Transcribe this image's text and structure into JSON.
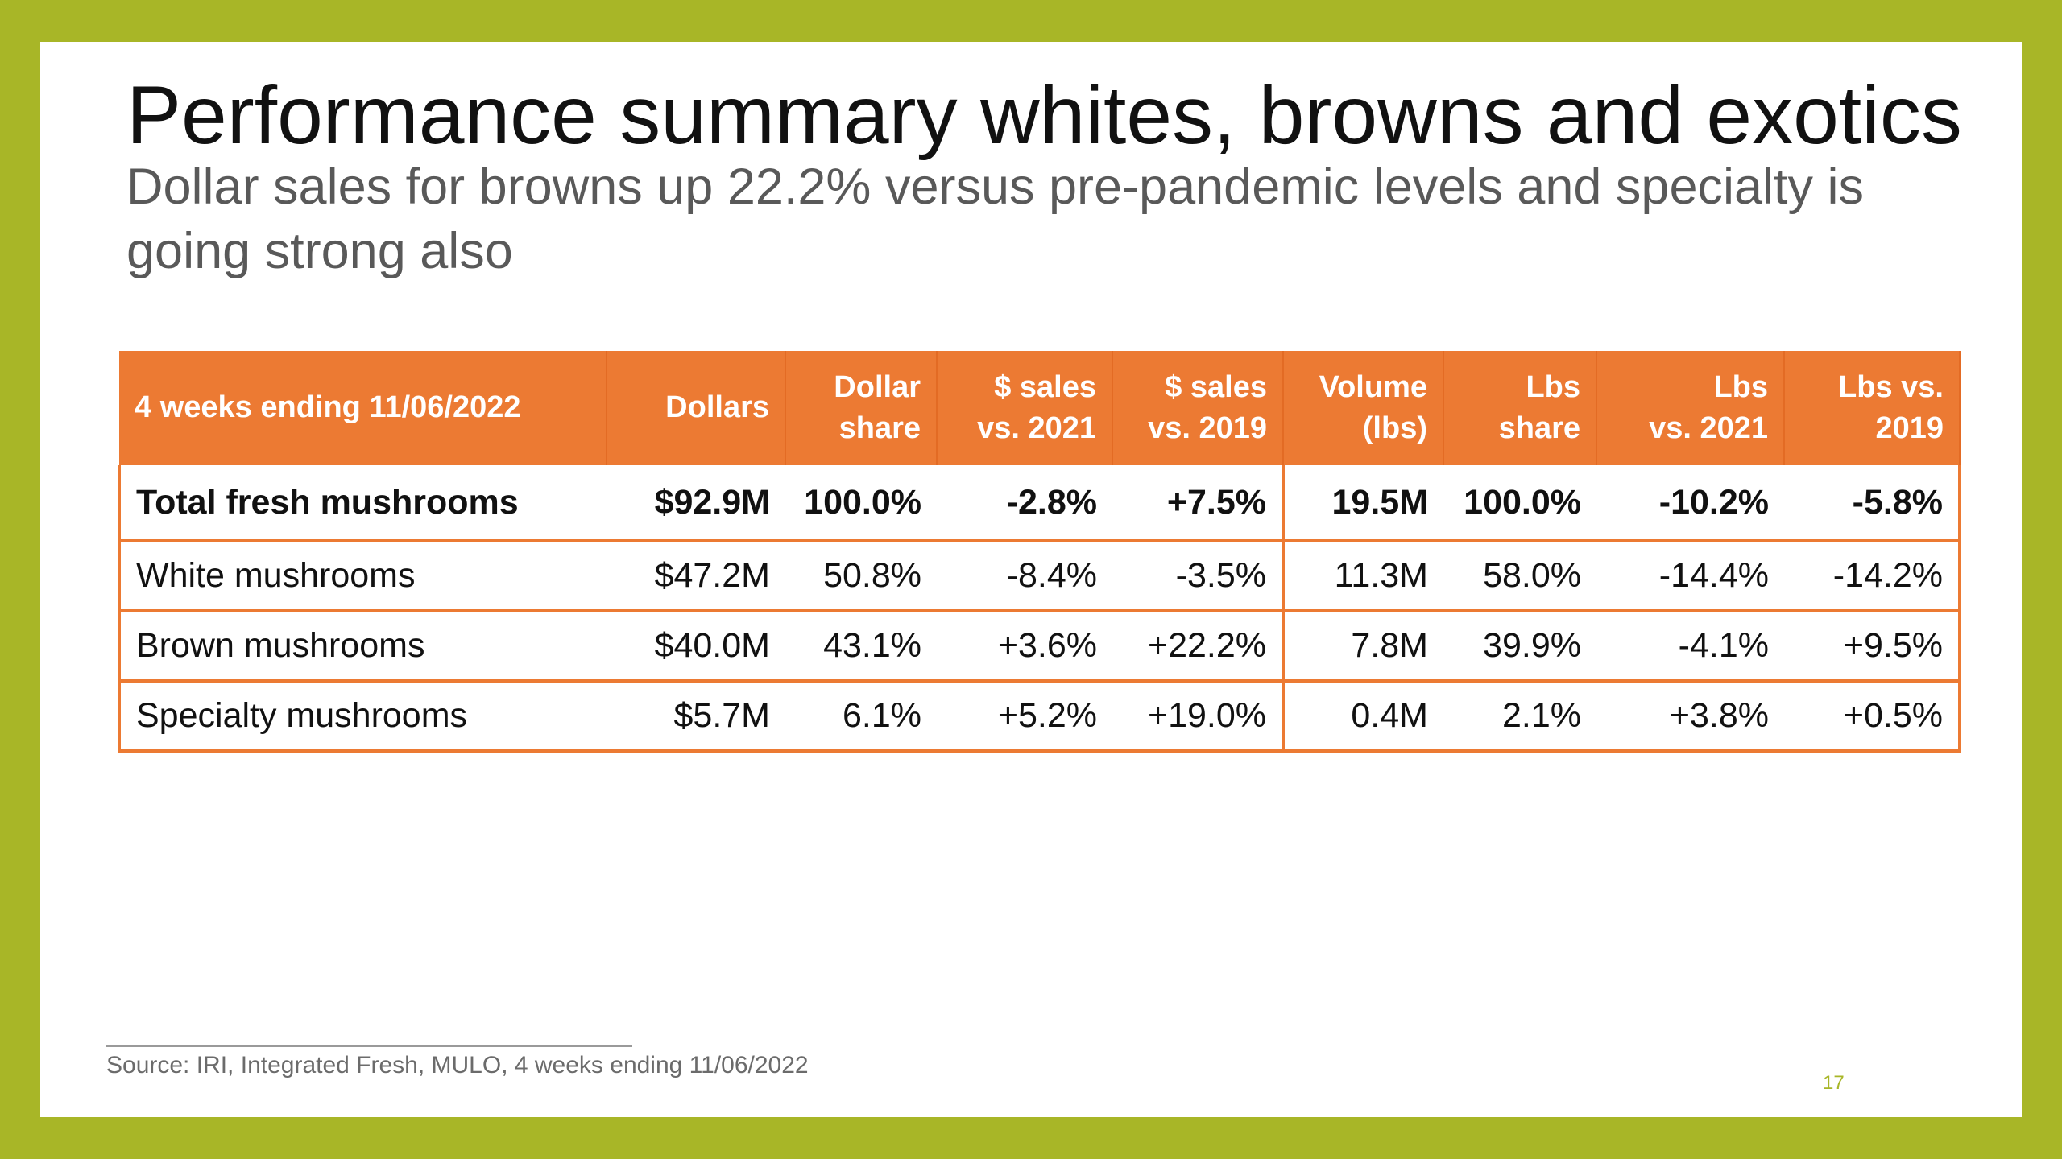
{
  "slide": {
    "title": "Performance summary whites, browns and exotics",
    "subtitle": "Dollar sales for browns up 22.2% versus pre-pandemic levels and specialty is going strong also",
    "source": "Source: IRI, Integrated Fresh, MULO, 4 weeks ending 11/06/2022",
    "page_number": "17",
    "colors": {
      "frame": "#a8b627",
      "header_fill": "#ec7a33",
      "border": "#ec7a33"
    }
  },
  "table": {
    "headers": [
      "4 weeks ending 11/06/2022",
      "Dollars",
      "Dollar\nshare",
      "$ sales\nvs. 2021",
      "$ sales\nvs. 2019",
      "Volume\n(lbs)",
      "Lbs\nshare",
      "Lbs\nvs. 2021",
      "Lbs vs.\n2019"
    ],
    "rows": [
      [
        "Total fresh mushrooms",
        "$92.9M",
        "100.0%",
        "-2.8%",
        "+7.5%",
        "19.5M",
        "100.0%",
        "-10.2%",
        "-5.8%"
      ],
      [
        "White mushrooms",
        "$47.2M",
        "50.8%",
        "-8.4%",
        "-3.5%",
        "11.3M",
        "58.0%",
        "-14.4%",
        "-14.2%"
      ],
      [
        "Brown mushrooms",
        "$40.0M",
        "43.1%",
        "+3.6%",
        "+22.2%",
        "7.8M",
        "39.9%",
        "-4.1%",
        "+9.5%"
      ],
      [
        "Specialty mushrooms",
        "$5.7M",
        "6.1%",
        "+5.2%",
        "+19.0%",
        "0.4M",
        "2.1%",
        "+3.8%",
        "+0.5%"
      ]
    ]
  }
}
